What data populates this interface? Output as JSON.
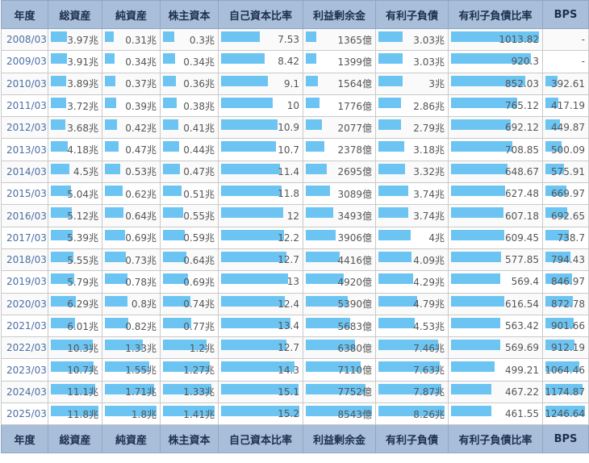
{
  "columns": [
    "年度",
    "総資産",
    "純資産",
    "株主資本",
    "自己資本比率",
    "利益剰余金",
    "有利子負債",
    "有利子負債比率",
    "BPS"
  ],
  "rows": [
    {
      "year": "2008/03",
      "total_assets": "3.97兆",
      "net_assets": "0.31兆",
      "shareholders_equity": "0.3兆",
      "equity_ratio": "7.53",
      "retained_earnings": "1365億",
      "interest_debt": "3.03兆",
      "debt_ratio": "1013.82",
      "bps": "-"
    },
    {
      "year": "2009/03",
      "total_assets": "3.91兆",
      "net_assets": "0.34兆",
      "shareholders_equity": "0.34兆",
      "equity_ratio": "8.42",
      "retained_earnings": "1399億",
      "interest_debt": "3.03兆",
      "debt_ratio": "920.3",
      "bps": "-"
    },
    {
      "year": "2010/03",
      "total_assets": "3.89兆",
      "net_assets": "0.37兆",
      "shareholders_equity": "0.36兆",
      "equity_ratio": "9.1",
      "retained_earnings": "1564億",
      "interest_debt": "3兆",
      "debt_ratio": "852.03",
      "bps": "392.61"
    },
    {
      "year": "2011/03",
      "total_assets": "3.72兆",
      "net_assets": "0.39兆",
      "shareholders_equity": "0.38兆",
      "equity_ratio": "10",
      "retained_earnings": "1776億",
      "interest_debt": "2.86兆",
      "debt_ratio": "765.12",
      "bps": "417.19"
    },
    {
      "year": "2012/03",
      "total_assets": "3.68兆",
      "net_assets": "0.42兆",
      "shareholders_equity": "0.41兆",
      "equity_ratio": "10.9",
      "retained_earnings": "2077億",
      "interest_debt": "2.79兆",
      "debt_ratio": "692.12",
      "bps": "449.87"
    },
    {
      "year": "2013/03",
      "total_assets": "4.18兆",
      "net_assets": "0.47兆",
      "shareholders_equity": "0.44兆",
      "equity_ratio": "10.7",
      "retained_earnings": "2378億",
      "interest_debt": "3.18兆",
      "debt_ratio": "708.85",
      "bps": "500.09"
    },
    {
      "year": "2014/03",
      "total_assets": "4.5兆",
      "net_assets": "0.53兆",
      "shareholders_equity": "0.47兆",
      "equity_ratio": "11.4",
      "retained_earnings": "2695億",
      "interest_debt": "3.32兆",
      "debt_ratio": "648.67",
      "bps": "575.91"
    },
    {
      "year": "2015/03",
      "total_assets": "5.04兆",
      "net_assets": "0.62兆",
      "shareholders_equity": "0.51兆",
      "equity_ratio": "11.8",
      "retained_earnings": "3089億",
      "interest_debt": "3.74兆",
      "debt_ratio": "627.48",
      "bps": "669.97"
    },
    {
      "year": "2016/03",
      "total_assets": "5.12兆",
      "net_assets": "0.64兆",
      "shareholders_equity": "0.55兆",
      "equity_ratio": "12",
      "retained_earnings": "3493億",
      "interest_debt": "3.74兆",
      "debt_ratio": "607.18",
      "bps": "692.65"
    },
    {
      "year": "2017/03",
      "total_assets": "5.39兆",
      "net_assets": "0.69兆",
      "shareholders_equity": "0.59兆",
      "equity_ratio": "12.2",
      "retained_earnings": "3906億",
      "interest_debt": "4兆",
      "debt_ratio": "609.45",
      "bps": "738.7"
    },
    {
      "year": "2018/03",
      "total_assets": "5.55兆",
      "net_assets": "0.73兆",
      "shareholders_equity": "0.64兆",
      "equity_ratio": "12.7",
      "retained_earnings": "4416億",
      "interest_debt": "4.09兆",
      "debt_ratio": "577.85",
      "bps": "794.43"
    },
    {
      "year": "2019/03",
      "total_assets": "5.79兆",
      "net_assets": "0.78兆",
      "shareholders_equity": "0.69兆",
      "equity_ratio": "13",
      "retained_earnings": "4920億",
      "interest_debt": "4.29兆",
      "debt_ratio": "569.4",
      "bps": "846.97"
    },
    {
      "year": "2020/03",
      "total_assets": "6.29兆",
      "net_assets": "0.8兆",
      "shareholders_equity": "0.74兆",
      "equity_ratio": "12.4",
      "retained_earnings": "5390億",
      "interest_debt": "4.79兆",
      "debt_ratio": "616.54",
      "bps": "872.78"
    },
    {
      "year": "2021/03",
      "total_assets": "6.01兆",
      "net_assets": "0.82兆",
      "shareholders_equity": "0.77兆",
      "equity_ratio": "13.4",
      "retained_earnings": "5683億",
      "interest_debt": "4.53兆",
      "debt_ratio": "563.42",
      "bps": "901.66"
    },
    {
      "year": "2022/03",
      "total_assets": "10.3兆",
      "net_assets": "1.33兆",
      "shareholders_equity": "1.2兆",
      "equity_ratio": "12.7",
      "retained_earnings": "6380億",
      "interest_debt": "7.46兆",
      "debt_ratio": "569.69",
      "bps": "912.19"
    },
    {
      "year": "2023/03",
      "total_assets": "10.7兆",
      "net_assets": "1.55兆",
      "shareholders_equity": "1.27兆",
      "equity_ratio": "14.3",
      "retained_earnings": "7110億",
      "interest_debt": "7.63兆",
      "debt_ratio": "499.21",
      "bps": "1064.46"
    },
    {
      "year": "2024/03",
      "total_assets": "11.1兆",
      "net_assets": "1.71兆",
      "shareholders_equity": "1.33兆",
      "equity_ratio": "15.1",
      "retained_earnings": "7752億",
      "interest_debt": "7.87兆",
      "debt_ratio": "467.22",
      "bps": "1174.87"
    },
    {
      "year": "2025/03",
      "total_assets": "11.8兆",
      "net_assets": "1.8兆",
      "shareholders_equity": "1.41兆",
      "equity_ratio": "15.2",
      "retained_earnings": "8543億",
      "interest_debt": "8.26兆",
      "debt_ratio": "461.55",
      "bps": "1246.64"
    }
  ],
  "colors": {
    "header_bg": "#a9bfd9",
    "bar": "#6cc4f2",
    "link": "#4a6fa5"
  }
}
